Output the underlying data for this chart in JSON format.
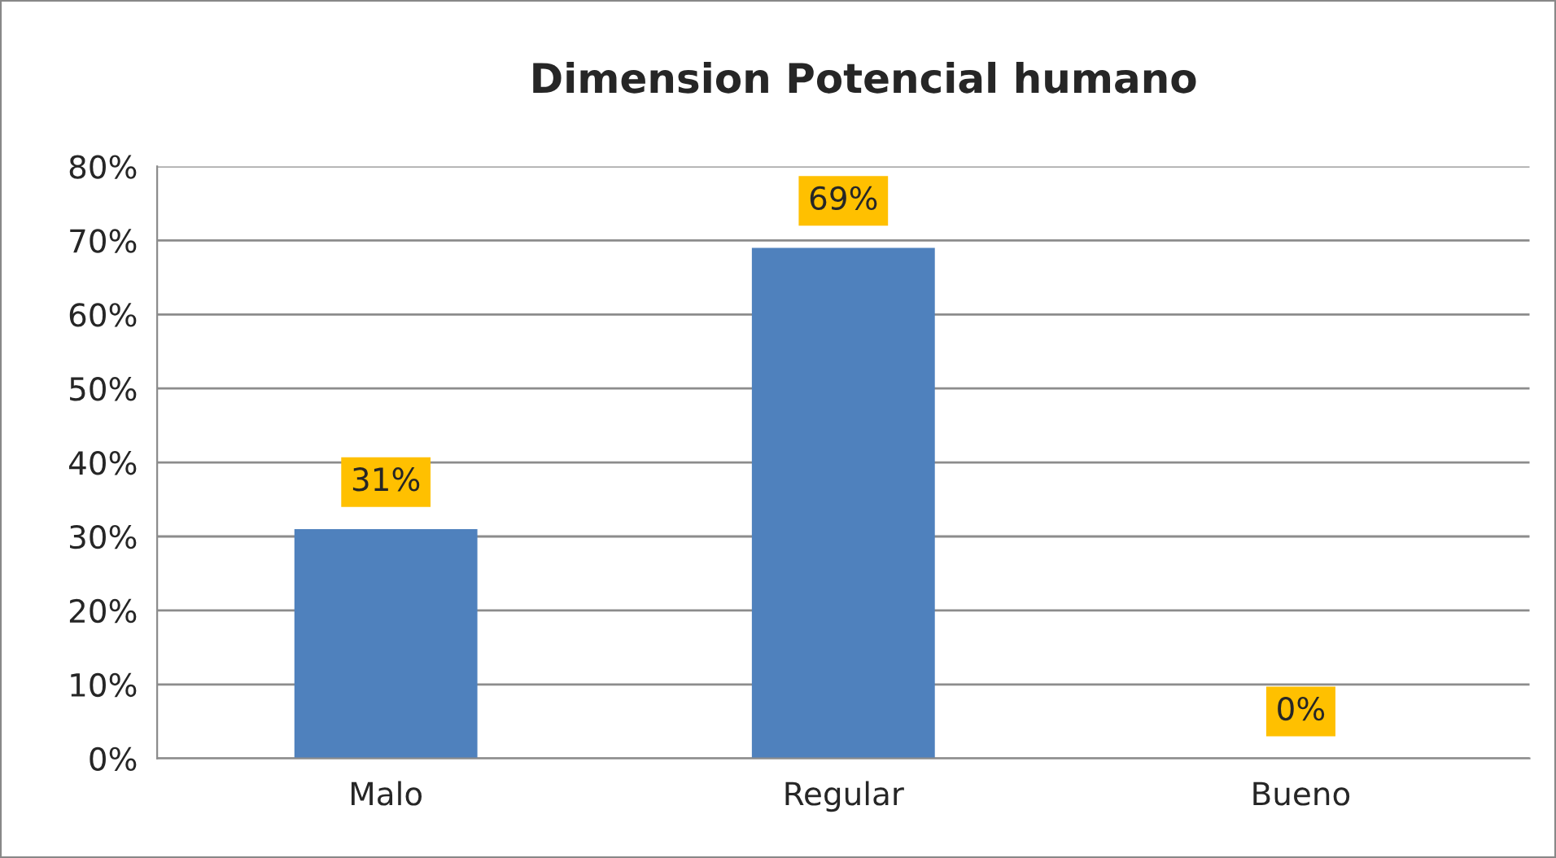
{
  "chart_data": {
    "type": "bar",
    "title": "Dimension Potencial humano",
    "categories": [
      "Malo",
      "Regular",
      "Bueno"
    ],
    "values": [
      31,
      69,
      0
    ],
    "color": "#4f81bd",
    "value_labels": [
      "31%",
      "69%",
      "0%"
    ],
    "ylim": [
      0,
      80
    ],
    "yticks": [
      {
        "value": 0,
        "label": "0%"
      },
      {
        "value": 10,
        "label": "10%"
      },
      {
        "value": 20,
        "label": "20%"
      },
      {
        "value": 30,
        "label": "30%"
      },
      {
        "value": 40,
        "label": "40%"
      },
      {
        "value": 50,
        "label": "50%"
      },
      {
        "value": 60,
        "label": "60%"
      },
      {
        "value": 70,
        "label": "70%"
      },
      {
        "value": 80,
        "label": "80%"
      }
    ],
    "grid": "y",
    "legend": false
  }
}
